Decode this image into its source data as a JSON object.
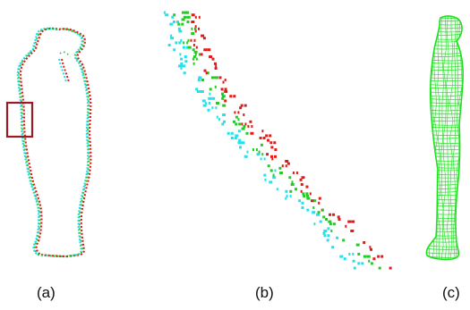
{
  "figure": {
    "panels": [
      {
        "id": "a",
        "label": "(a)"
      },
      {
        "id": "b",
        "label": "(b)"
      },
      {
        "id": "c",
        "label": "(c)"
      }
    ],
    "colors": {
      "cyan": "#22e2ee",
      "red": "#e21a1a",
      "green": "#22cc22",
      "mesh": "#1ee01e",
      "box": "#9a1b25",
      "caption": "#111111"
    }
  }
}
